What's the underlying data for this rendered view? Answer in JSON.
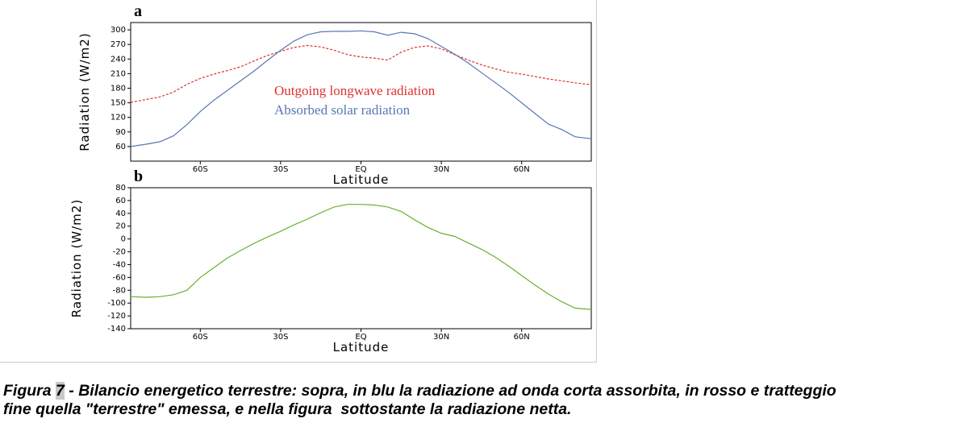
{
  "chart_data": [
    {
      "type": "line",
      "panel": "a",
      "ylabel": "Radiation (W/m2)",
      "xlabel": "Latitude",
      "x": [
        -86,
        -80,
        -75,
        -70,
        -65,
        -60,
        -55,
        -50,
        -45,
        -40,
        -35,
        -30,
        -25,
        -20,
        -15,
        -10,
        -5,
        0,
        5,
        10,
        15,
        20,
        25,
        30,
        35,
        40,
        45,
        50,
        55,
        60,
        65,
        70,
        75,
        80,
        86
      ],
      "series": [
        {
          "name": "Outgoing longwave radiation",
          "color": "#e03030",
          "dashed": true,
          "values": [
            151,
            157,
            162,
            172,
            188,
            200,
            209,
            216,
            224,
            236,
            247,
            256,
            264,
            268,
            265,
            258,
            249,
            244,
            242,
            238,
            254,
            264,
            267,
            261,
            249,
            238,
            228,
            220,
            213,
            209,
            204,
            199,
            195,
            191,
            187
          ]
        },
        {
          "name": "Absorbed solar radiation",
          "color": "#5a76b5",
          "dashed": false,
          "values": [
            60,
            65,
            70,
            82,
            105,
            132,
            155,
            175,
            195,
            215,
            237,
            258,
            277,
            290,
            296,
            297,
            297,
            298,
            296,
            289,
            295,
            292,
            282,
            266,
            250,
            232,
            212,
            192,
            172,
            150,
            128,
            106,
            95,
            80,
            76
          ]
        }
      ],
      "xlim": [
        -86,
        86
      ],
      "xticks": [
        {
          "value": -60,
          "label": "60S"
        },
        {
          "value": -30,
          "label": "30S"
        },
        {
          "value": 0,
          "label": "EQ"
        },
        {
          "value": 30,
          "label": "30N"
        },
        {
          "value": 60,
          "label": "60N"
        }
      ],
      "ylim": [
        30,
        315
      ],
      "yticks": [
        60,
        90,
        120,
        150,
        180,
        210,
        240,
        270,
        300
      ],
      "legend": "inside"
    },
    {
      "type": "line",
      "panel": "b",
      "ylabel": "Radiation (W/m2)",
      "xlabel": "Latitude",
      "x": [
        -86,
        -80,
        -75,
        -70,
        -65,
        -60,
        -55,
        -50,
        -45,
        -40,
        -35,
        -30,
        -25,
        -20,
        -15,
        -10,
        -5,
        0,
        5,
        10,
        15,
        20,
        25,
        30,
        35,
        40,
        45,
        50,
        55,
        60,
        65,
        70,
        75,
        80,
        86
      ],
      "series": [
        {
          "color": "#6ab030",
          "dashed": false,
          "values": [
            -90,
            -91,
            -90,
            -87,
            -80,
            -60,
            -45,
            -30,
            -18,
            -7,
            3,
            12,
            22,
            31,
            41,
            50,
            54,
            54,
            53,
            50,
            43,
            30,
            18,
            9,
            4,
            -6,
            -16,
            -28,
            -42,
            -57,
            -72,
            -86,
            -98,
            -108,
            -110
          ]
        }
      ],
      "xlim": [
        -86,
        86
      ],
      "xticks": [
        {
          "value": -60,
          "label": "60S"
        },
        {
          "value": -30,
          "label": "30S"
        },
        {
          "value": 0,
          "label": "EQ"
        },
        {
          "value": 30,
          "label": "30N"
        },
        {
          "value": 60,
          "label": "60N"
        }
      ],
      "ylim": [
        -140,
        80
      ],
      "yticks": [
        80,
        60,
        40,
        20,
        0,
        -20,
        -40,
        -60,
        -80,
        -100,
        -120,
        -140
      ]
    }
  ],
  "caption": {
    "prefix": "Figura ",
    "number": "7",
    "line1": " - Bilancio energetico terrestre: sopra, in blu la radiazione ad onda corta assorbita, in rosso e tratteggio",
    "line2": "fine quella \"terrestre\" emessa, e nella figura  sottostante la radiazione netta."
  }
}
